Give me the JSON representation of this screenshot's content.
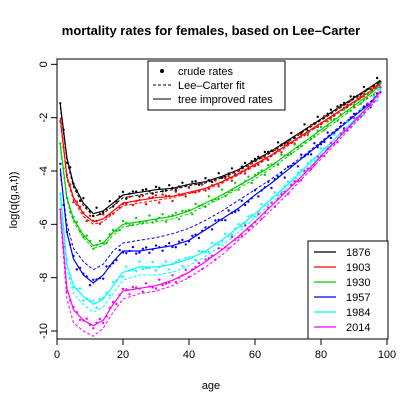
{
  "chart_data": {
    "type": "line",
    "title": "mortality rates for females, based on Lee–Carter",
    "xlabel": "age",
    "ylabel": "log(q(g,a,t))",
    "xlim": [
      0,
      100
    ],
    "ylim": [
      -10.3,
      0.2
    ],
    "x_ticks": [
      0,
      20,
      40,
      60,
      80,
      100
    ],
    "y_ticks": [
      0,
      -2,
      -4,
      -6,
      -8,
      -10
    ],
    "grid": false,
    "legend_style": {
      "position": "top-center",
      "entries": [
        {
          "label": "crude rates",
          "style": "points"
        },
        {
          "label": "Lee–Carter fit",
          "style": "dashed"
        },
        {
          "label": "tree improved rates",
          "style": "solid"
        }
      ]
    },
    "legend_years": {
      "position": "bottom-right",
      "entries": [
        "1876",
        "1903",
        "1930",
        "1957",
        "1984",
        "2014"
      ]
    },
    "series_years": [
      {
        "name": "1876",
        "color": "#000000",
        "tree": [
          [
            1,
            -1.5
          ],
          [
            3,
            -3.5
          ],
          [
            5,
            -4.5
          ],
          [
            8,
            -5.2
          ],
          [
            11,
            -5.6
          ],
          [
            14,
            -5.5
          ],
          [
            17,
            -5.2
          ],
          [
            20,
            -4.9
          ],
          [
            25,
            -4.8
          ],
          [
            30,
            -4.7
          ],
          [
            35,
            -4.65
          ],
          [
            40,
            -4.5
          ],
          [
            45,
            -4.4
          ],
          [
            50,
            -4.2
          ],
          [
            55,
            -3.95
          ],
          [
            60,
            -3.6
          ],
          [
            65,
            -3.25
          ],
          [
            70,
            -2.85
          ],
          [
            75,
            -2.45
          ],
          [
            80,
            -2.05
          ],
          [
            85,
            -1.65
          ],
          [
            90,
            -1.25
          ],
          [
            95,
            -0.85
          ],
          [
            98,
            -0.6
          ]
        ],
        "lc": [
          [
            1,
            -1.6
          ],
          [
            3,
            -3.6
          ],
          [
            5,
            -4.6
          ],
          [
            8,
            -5.3
          ],
          [
            11,
            -5.7
          ],
          [
            14,
            -5.6
          ],
          [
            17,
            -5.3
          ],
          [
            20,
            -5.0
          ],
          [
            25,
            -4.9
          ],
          [
            30,
            -4.8
          ],
          [
            35,
            -4.7
          ],
          [
            40,
            -4.55
          ],
          [
            45,
            -4.45
          ],
          [
            50,
            -4.25
          ],
          [
            55,
            -4.0
          ],
          [
            60,
            -3.65
          ],
          [
            65,
            -3.3
          ],
          [
            70,
            -2.9
          ],
          [
            75,
            -2.5
          ],
          [
            80,
            -2.1
          ],
          [
            85,
            -1.7
          ],
          [
            90,
            -1.3
          ],
          [
            95,
            -0.9
          ],
          [
            98,
            -0.65
          ]
        ]
      },
      {
        "name": "1903",
        "color": "#ff0000",
        "tree": [
          [
            1,
            -2.0
          ],
          [
            3,
            -4.2
          ],
          [
            5,
            -5.0
          ],
          [
            8,
            -5.6
          ],
          [
            11,
            -5.9
          ],
          [
            14,
            -5.8
          ],
          [
            17,
            -5.5
          ],
          [
            20,
            -5.2
          ],
          [
            25,
            -5.1
          ],
          [
            30,
            -5.0
          ],
          [
            35,
            -4.95
          ],
          [
            40,
            -4.8
          ],
          [
            45,
            -4.65
          ],
          [
            50,
            -4.4
          ],
          [
            55,
            -4.1
          ],
          [
            60,
            -3.75
          ],
          [
            65,
            -3.4
          ],
          [
            70,
            -3.0
          ],
          [
            75,
            -2.6
          ],
          [
            80,
            -2.2
          ],
          [
            85,
            -1.8
          ],
          [
            90,
            -1.4
          ],
          [
            95,
            -1.0
          ],
          [
            98,
            -0.7
          ]
        ],
        "lc": [
          [
            1,
            -2.1
          ],
          [
            3,
            -4.3
          ],
          [
            5,
            -5.1
          ],
          [
            8,
            -5.7
          ],
          [
            11,
            -6.0
          ],
          [
            14,
            -5.9
          ],
          [
            17,
            -5.6
          ],
          [
            20,
            -5.3
          ],
          [
            25,
            -5.2
          ],
          [
            30,
            -5.1
          ],
          [
            35,
            -5.0
          ],
          [
            40,
            -4.85
          ],
          [
            45,
            -4.7
          ],
          [
            50,
            -4.45
          ],
          [
            55,
            -4.15
          ],
          [
            60,
            -3.8
          ],
          [
            65,
            -3.45
          ],
          [
            70,
            -3.05
          ],
          [
            75,
            -2.65
          ],
          [
            80,
            -2.25
          ],
          [
            85,
            -1.85
          ],
          [
            90,
            -1.45
          ],
          [
            95,
            -1.05
          ],
          [
            98,
            -0.75
          ]
        ]
      },
      {
        "name": "1930",
        "color": "#00cd00",
        "tree": [
          [
            1,
            -3.0
          ],
          [
            3,
            -5.0
          ],
          [
            5,
            -5.8
          ],
          [
            8,
            -6.4
          ],
          [
            11,
            -6.8
          ],
          [
            14,
            -6.7
          ],
          [
            17,
            -6.3
          ],
          [
            20,
            -6.0
          ],
          [
            25,
            -5.9
          ],
          [
            30,
            -5.8
          ],
          [
            35,
            -5.7
          ],
          [
            40,
            -5.5
          ],
          [
            45,
            -5.2
          ],
          [
            50,
            -4.9
          ],
          [
            55,
            -4.55
          ],
          [
            60,
            -4.2
          ],
          [
            65,
            -3.8
          ],
          [
            70,
            -3.35
          ],
          [
            75,
            -2.9
          ],
          [
            80,
            -2.45
          ],
          [
            85,
            -2.0
          ],
          [
            90,
            -1.55
          ],
          [
            95,
            -1.1
          ],
          [
            98,
            -0.8
          ]
        ],
        "lc": [
          [
            1,
            -3.1
          ],
          [
            3,
            -5.1
          ],
          [
            5,
            -5.9
          ],
          [
            8,
            -6.5
          ],
          [
            11,
            -6.9
          ],
          [
            14,
            -6.8
          ],
          [
            17,
            -6.4
          ],
          [
            20,
            -6.1
          ],
          [
            25,
            -6.0
          ],
          [
            30,
            -5.9
          ],
          [
            35,
            -5.8
          ],
          [
            40,
            -5.6
          ],
          [
            45,
            -5.3
          ],
          [
            50,
            -5.0
          ],
          [
            55,
            -4.65
          ],
          [
            60,
            -4.3
          ],
          [
            65,
            -3.9
          ],
          [
            70,
            -3.45
          ],
          [
            75,
            -3.0
          ],
          [
            80,
            -2.55
          ],
          [
            85,
            -2.1
          ],
          [
            90,
            -1.65
          ],
          [
            95,
            -1.2
          ],
          [
            98,
            -0.9
          ]
        ]
      },
      {
        "name": "1957",
        "color": "#0000ff",
        "tree": [
          [
            1,
            -3.9
          ],
          [
            3,
            -6.3
          ],
          [
            5,
            -7.3
          ],
          [
            8,
            -7.9
          ],
          [
            11,
            -8.2
          ],
          [
            14,
            -7.9
          ],
          [
            17,
            -7.4
          ],
          [
            20,
            -7.0
          ],
          [
            25,
            -7.0
          ],
          [
            30,
            -6.9
          ],
          [
            35,
            -6.8
          ],
          [
            40,
            -6.6
          ],
          [
            45,
            -6.2
          ],
          [
            50,
            -5.8
          ],
          [
            55,
            -5.4
          ],
          [
            60,
            -4.9
          ],
          [
            65,
            -4.45
          ],
          [
            70,
            -3.95
          ],
          [
            75,
            -3.45
          ],
          [
            80,
            -2.95
          ],
          [
            85,
            -2.45
          ],
          [
            90,
            -1.95
          ],
          [
            95,
            -1.45
          ],
          [
            98,
            -1.0
          ]
        ],
        "lc": [
          [
            1,
            -4.1
          ],
          [
            3,
            -6.0
          ],
          [
            5,
            -6.9
          ],
          [
            8,
            -7.4
          ],
          [
            11,
            -7.7
          ],
          [
            14,
            -7.5
          ],
          [
            17,
            -7.0
          ],
          [
            20,
            -6.7
          ],
          [
            25,
            -6.6
          ],
          [
            30,
            -6.5
          ],
          [
            35,
            -6.35
          ],
          [
            40,
            -6.15
          ],
          [
            45,
            -5.85
          ],
          [
            50,
            -5.5
          ],
          [
            55,
            -5.1
          ],
          [
            60,
            -4.7
          ],
          [
            65,
            -4.3
          ],
          [
            70,
            -3.85
          ],
          [
            75,
            -3.4
          ],
          [
            80,
            -2.9
          ],
          [
            85,
            -2.4
          ],
          [
            90,
            -1.9
          ],
          [
            95,
            -1.4
          ],
          [
            98,
            -1.0
          ]
        ]
      },
      {
        "name": "1984",
        "color": "#00ffff",
        "tree": [
          [
            1,
            -4.8
          ],
          [
            3,
            -7.5
          ],
          [
            5,
            -8.3
          ],
          [
            8,
            -8.7
          ],
          [
            11,
            -9.0
          ],
          [
            14,
            -8.8
          ],
          [
            17,
            -8.3
          ],
          [
            20,
            -7.8
          ],
          [
            25,
            -7.6
          ],
          [
            30,
            -7.6
          ],
          [
            35,
            -7.5
          ],
          [
            40,
            -7.3
          ],
          [
            45,
            -7.0
          ],
          [
            50,
            -6.6
          ],
          [
            55,
            -6.1
          ],
          [
            60,
            -5.6
          ],
          [
            65,
            -5.05
          ],
          [
            70,
            -4.5
          ],
          [
            75,
            -3.9
          ],
          [
            80,
            -3.3
          ],
          [
            85,
            -2.7
          ],
          [
            90,
            -2.1
          ],
          [
            95,
            -1.5
          ],
          [
            98,
            -1.0
          ]
        ],
        "lc": [
          [
            1,
            -5.0
          ],
          [
            3,
            -7.7
          ],
          [
            5,
            -8.6
          ],
          [
            8,
            -9.0
          ],
          [
            11,
            -9.3
          ],
          [
            14,
            -9.1
          ],
          [
            17,
            -8.6
          ],
          [
            20,
            -8.1
          ],
          [
            25,
            -7.9
          ],
          [
            30,
            -7.9
          ],
          [
            35,
            -7.8
          ],
          [
            40,
            -7.55
          ],
          [
            45,
            -7.2
          ],
          [
            50,
            -6.8
          ],
          [
            55,
            -6.3
          ],
          [
            60,
            -5.75
          ],
          [
            65,
            -5.2
          ],
          [
            70,
            -4.6
          ],
          [
            75,
            -4.0
          ],
          [
            80,
            -3.4
          ],
          [
            85,
            -2.8
          ],
          [
            90,
            -2.2
          ],
          [
            95,
            -1.6
          ],
          [
            98,
            -1.1
          ]
        ]
      },
      {
        "name": "2014",
        "color": "#ff00ff",
        "tree": [
          [
            1,
            -5.5
          ],
          [
            3,
            -8.4
          ],
          [
            5,
            -9.2
          ],
          [
            8,
            -9.6
          ],
          [
            11,
            -9.8
          ],
          [
            14,
            -9.6
          ],
          [
            17,
            -9.0
          ],
          [
            20,
            -8.5
          ],
          [
            25,
            -8.4
          ],
          [
            30,
            -8.3
          ],
          [
            35,
            -8.1
          ],
          [
            40,
            -7.8
          ],
          [
            45,
            -7.4
          ],
          [
            50,
            -6.95
          ],
          [
            55,
            -6.45
          ],
          [
            60,
            -5.9
          ],
          [
            65,
            -5.3
          ],
          [
            70,
            -4.7
          ],
          [
            75,
            -4.1
          ],
          [
            80,
            -3.45
          ],
          [
            85,
            -2.8
          ],
          [
            90,
            -2.15
          ],
          [
            95,
            -1.5
          ],
          [
            98,
            -1.0
          ]
        ],
        "lc": [
          [
            1,
            -5.7
          ],
          [
            3,
            -8.8
          ],
          [
            5,
            -9.7
          ],
          [
            8,
            -10.0
          ],
          [
            11,
            -10.2
          ],
          [
            14,
            -9.9
          ],
          [
            17,
            -9.3
          ],
          [
            20,
            -8.8
          ],
          [
            25,
            -8.6
          ],
          [
            30,
            -8.5
          ],
          [
            35,
            -8.3
          ],
          [
            40,
            -8.0
          ],
          [
            45,
            -7.6
          ],
          [
            50,
            -7.15
          ],
          [
            55,
            -6.6
          ],
          [
            60,
            -6.05
          ],
          [
            65,
            -5.45
          ],
          [
            70,
            -4.85
          ],
          [
            75,
            -4.2
          ],
          [
            80,
            -3.55
          ],
          [
            85,
            -2.9
          ],
          [
            90,
            -2.25
          ],
          [
            95,
            -1.6
          ],
          [
            98,
            -1.1
          ]
        ]
      }
    ]
  }
}
